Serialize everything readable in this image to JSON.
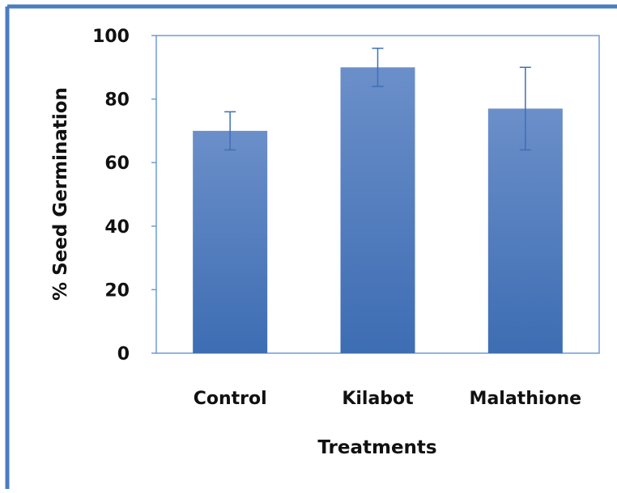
{
  "chart_data": {
    "type": "bar",
    "title": "",
    "xlabel": "Treatments",
    "ylabel": "% Seed Germination",
    "categories": [
      "Control",
      "Kilabot",
      "Malathione"
    ],
    "values": [
      70,
      90,
      77
    ],
    "error_bars": [
      6,
      6,
      13
    ],
    "ylim": [
      0,
      100
    ],
    "yticks": [
      0,
      20,
      40,
      60,
      80,
      100
    ],
    "grid": false,
    "legend": "none",
    "colors": {
      "bar_top": "#6b8fc9",
      "bar_bottom": "#3d6db3",
      "error_bar": "#3f6fb5",
      "plot_border": "#6f9bd6",
      "frame_border": "#4a7cc4"
    }
  }
}
